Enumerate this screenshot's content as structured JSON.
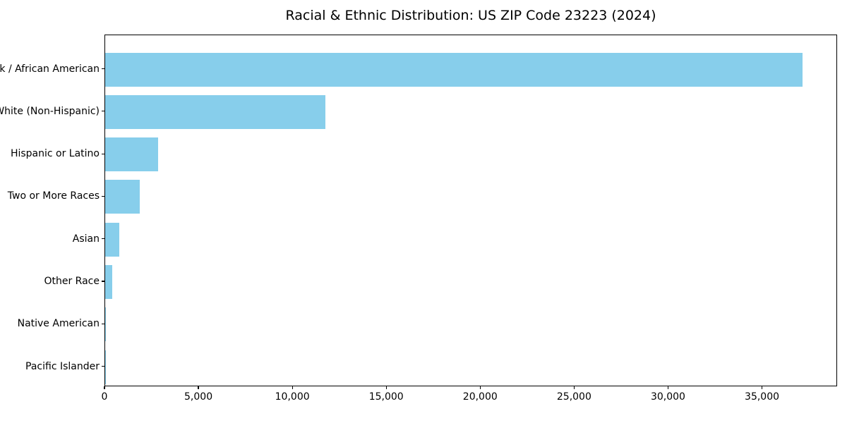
{
  "figure": {
    "background": "#ffffff"
  },
  "chart_data": {
    "type": "bar",
    "orientation": "horizontal",
    "title": "Racial & Ethnic Distribution: US ZIP Code 23223 (2024)",
    "categories": [
      "Black / African American",
      "White (Non-Hispanic)",
      "Hispanic or Latino",
      "Two or More Races",
      "Asian",
      "Other Race",
      "Native American",
      "Pacific Islander"
    ],
    "values": [
      37120,
      11730,
      2810,
      1850,
      760,
      380,
      45,
      12
    ],
    "xlabel": "",
    "ylabel": "",
    "xlim": [
      0,
      39000
    ],
    "xticks": [
      0,
      5000,
      10000,
      15000,
      20000,
      25000,
      30000,
      35000
    ],
    "xtick_labels": [
      "0",
      "5,000",
      "10,000",
      "15,000",
      "20,000",
      "25,000",
      "30,000",
      "35,000"
    ],
    "bar_color": "#87CEEB",
    "axis_color": "#000000",
    "grid": false,
    "legend": null
  }
}
